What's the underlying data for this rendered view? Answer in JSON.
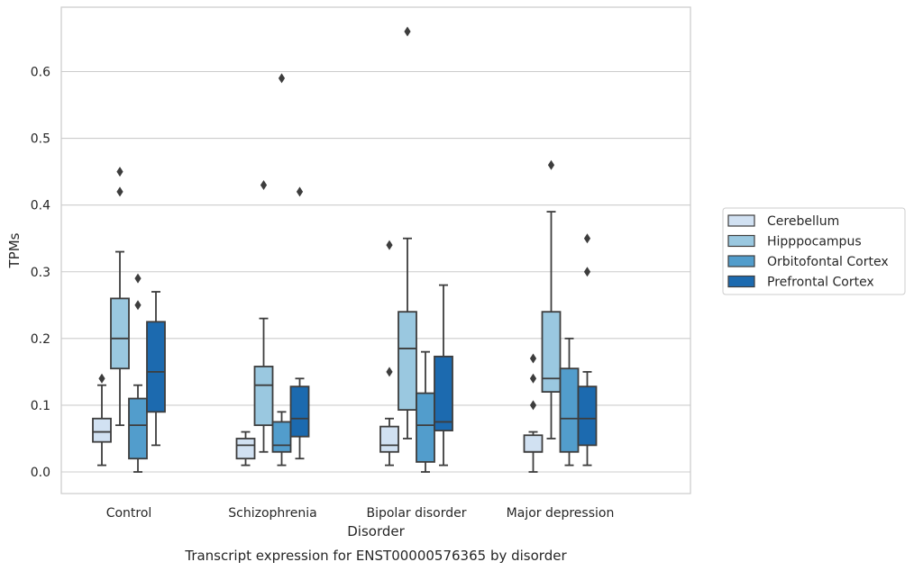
{
  "chart_data": {
    "type": "boxplot",
    "title": "Transcript expression for ENST00000576365 by disorder",
    "xlabel": "Disorder",
    "ylabel": "TPMs",
    "ylim": [
      -0.032,
      0.695
    ],
    "yticks": [
      "0.0",
      "0.1",
      "0.2",
      "0.3",
      "0.4",
      "0.5",
      "0.6"
    ],
    "grid": "horizontal",
    "legend_position": "right",
    "categories": [
      "Control",
      "Schizophrenia",
      "Bipolar disorder",
      "Major depression"
    ],
    "series": [
      {
        "name": "Cerebellum",
        "color": "#d1e1f2",
        "boxes": [
          {
            "whislo": 0.01,
            "q1": 0.045,
            "med": 0.06,
            "q3": 0.08,
            "whishi": 0.13,
            "fliers": [
              0.14
            ]
          },
          {
            "whislo": 0.01,
            "q1": 0.02,
            "med": 0.04,
            "q3": 0.05,
            "whishi": 0.06,
            "fliers": []
          },
          {
            "whislo": 0.01,
            "q1": 0.03,
            "med": 0.04,
            "q3": 0.068,
            "whishi": 0.08,
            "fliers": [
              0.15,
              0.34
            ]
          },
          {
            "whislo": 0.0,
            "q1": 0.03,
            "med": 0.03,
            "q3": 0.055,
            "whishi": 0.06,
            "fliers": [
              0.1,
              0.14,
              0.17
            ]
          }
        ]
      },
      {
        "name": "Hipppocampus",
        "color": "#9ac8e0",
        "boxes": [
          {
            "whislo": 0.07,
            "q1": 0.155,
            "med": 0.2,
            "q3": 0.26,
            "whishi": 0.33,
            "fliers": [
              0.42,
              0.45
            ]
          },
          {
            "whislo": 0.03,
            "q1": 0.07,
            "med": 0.13,
            "q3": 0.158,
            "whishi": 0.23,
            "fliers": [
              0.43
            ]
          },
          {
            "whislo": 0.05,
            "q1": 0.093,
            "med": 0.185,
            "q3": 0.24,
            "whishi": 0.35,
            "fliers": [
              0.66
            ]
          },
          {
            "whislo": 0.05,
            "q1": 0.12,
            "med": 0.14,
            "q3": 0.24,
            "whishi": 0.39,
            "fliers": [
              0.46
            ]
          }
        ]
      },
      {
        "name": "Orbitofontal Cortex",
        "color": "#529dcc",
        "boxes": [
          {
            "whislo": 0.0,
            "q1": 0.02,
            "med": 0.07,
            "q3": 0.11,
            "whishi": 0.13,
            "fliers": [
              0.25,
              0.29
            ]
          },
          {
            "whislo": 0.01,
            "q1": 0.03,
            "med": 0.04,
            "q3": 0.075,
            "whishi": 0.09,
            "fliers": [
              0.59
            ]
          },
          {
            "whislo": 0.0,
            "q1": 0.015,
            "med": 0.07,
            "q3": 0.118,
            "whishi": 0.18,
            "fliers": []
          },
          {
            "whislo": 0.01,
            "q1": 0.03,
            "med": 0.08,
            "q3": 0.155,
            "whishi": 0.2,
            "fliers": []
          }
        ]
      },
      {
        "name": "Prefrontal Cortex",
        "color": "#1c6aaf",
        "boxes": [
          {
            "whislo": 0.04,
            "q1": 0.09,
            "med": 0.15,
            "q3": 0.225,
            "whishi": 0.27,
            "fliers": []
          },
          {
            "whislo": 0.02,
            "q1": 0.053,
            "med": 0.08,
            "q3": 0.128,
            "whishi": 0.14,
            "fliers": [
              0.42
            ]
          },
          {
            "whislo": 0.01,
            "q1": 0.062,
            "med": 0.075,
            "q3": 0.173,
            "whishi": 0.28,
            "fliers": []
          },
          {
            "whislo": 0.01,
            "q1": 0.04,
            "med": 0.08,
            "q3": 0.128,
            "whishi": 0.15,
            "fliers": [
              0.3,
              0.35
            ]
          }
        ]
      }
    ]
  }
}
